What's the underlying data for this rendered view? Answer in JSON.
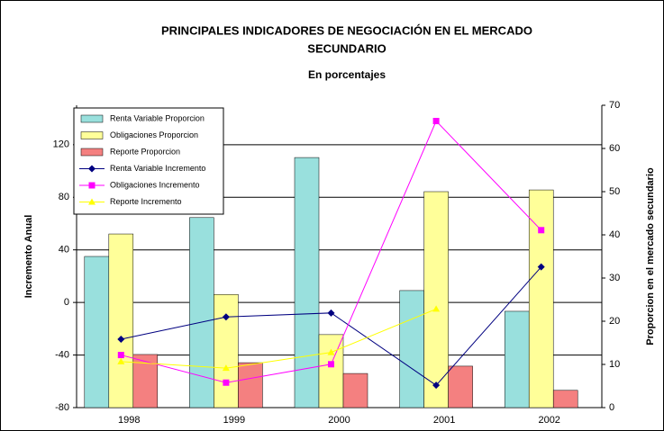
{
  "chart_data": {
    "type": "bar_line",
    "title": [
      "PRINCIPALES INDICADORES DE NEGOCIACIÓN EN EL MERCADO",
      "SECUNDARIO"
    ],
    "subtitle": "En porcentajes",
    "y_label": "Incremento Anual",
    "y2_label": "Proporcion en el mercado secundario",
    "categories": [
      "1998",
      "1999",
      "2000",
      "2001",
      "2002"
    ],
    "ylim": [
      -80,
      150
    ],
    "yticks": [
      -80,
      -40,
      0,
      40,
      80,
      120
    ],
    "y2lim": [
      0,
      70
    ],
    "y2ticks": [
      0,
      10,
      20,
      30,
      40,
      50,
      60,
      70
    ],
    "grid": true,
    "legend": "upper left",
    "series": [
      {
        "name": "Renta Variable Proporcion",
        "kind": "bar",
        "axis": "y2",
        "color": "#99e0dd",
        "values": [
          35,
          44,
          57.9,
          27.1,
          22.3
        ]
      },
      {
        "name": "Obligaciones Proporcion",
        "kind": "bar",
        "axis": "y2",
        "color": "#ffff99",
        "values": [
          40.2,
          26.2,
          16.9,
          50,
          50.4
        ]
      },
      {
        "name": "Reporte Proporcion",
        "kind": "bar",
        "axis": "y2",
        "color": "#f48080",
        "values": [
          12.3,
          10.4,
          7.9,
          9.6,
          4
        ]
      },
      {
        "name": "Renta Variable Incremento",
        "kind": "line",
        "axis": "y",
        "color": "#000080",
        "marker": "diamond",
        "values": [
          -28,
          -11,
          -8,
          -63,
          27
        ]
      },
      {
        "name": "Obligaciones Incremento",
        "kind": "line",
        "axis": "y",
        "color": "#ff00ff",
        "marker": "square",
        "values": [
          -40,
          -61,
          -47,
          138,
          55
        ]
      },
      {
        "name": "Reporte Incremento",
        "kind": "line",
        "axis": "y",
        "color": "#ffff00",
        "marker": "triangle",
        "values": [
          -45,
          -50,
          -38,
          -5,
          null
        ]
      }
    ]
  }
}
